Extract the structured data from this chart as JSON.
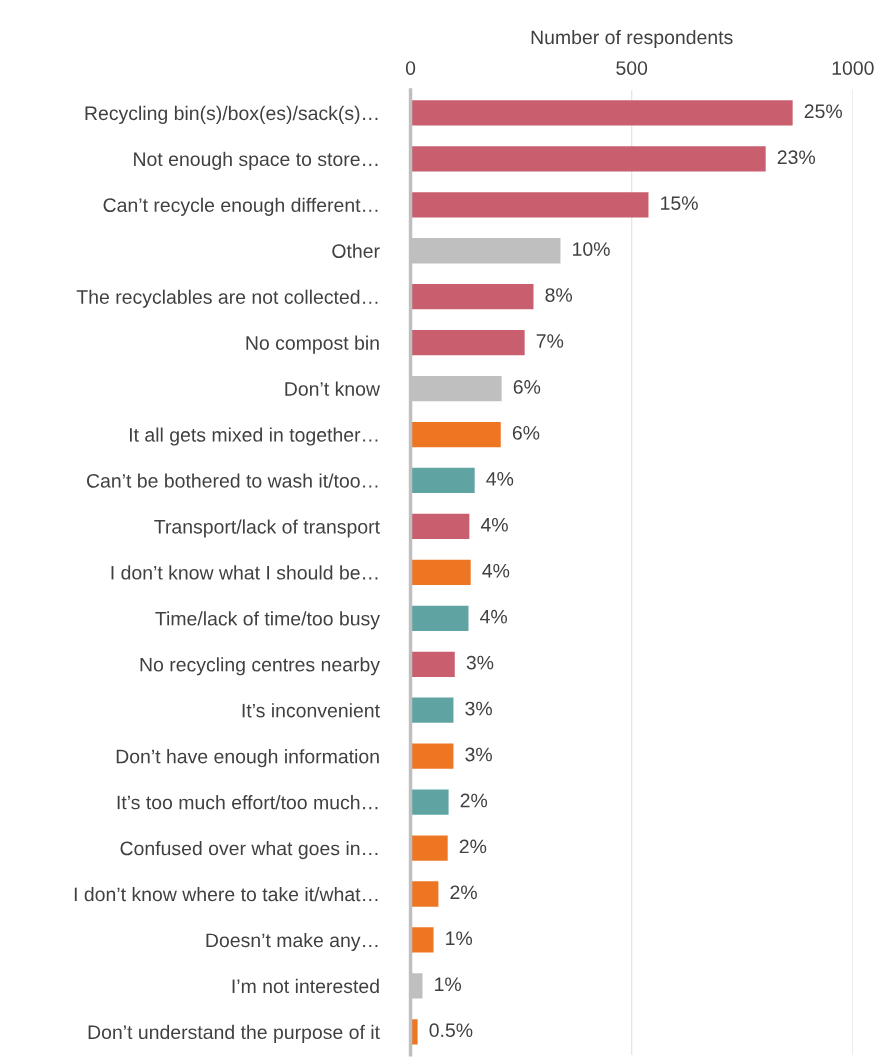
{
  "chart_data": {
    "type": "bar",
    "orientation": "horizontal",
    "xlabel": "Number of respondents",
    "categories": [
      "Recycling bin(s)/box(es)/sack(s)…",
      "Not enough space to store…",
      "Can’t recycle enough different…",
      "Other",
      "The recyclables are not collected…",
      "No compost bin",
      "Don’t know",
      "It all gets mixed in together…",
      "Can’t be bothered to wash it/too…",
      "Transport/lack of transport",
      "I don’t know what I should be…",
      "Time/lack of time/too busy",
      "No recycling centres nearby",
      "It’s inconvenient",
      "Don’t have enough information",
      "It’s too much effort/too much…",
      "Confused over what goes in…",
      "I don’t know where to take it/what…",
      "Doesn’t make any…",
      "I’m not interested",
      "Don’t understand the purpose of it"
    ],
    "values": [
      864,
      803,
      538,
      339,
      278,
      258,
      206,
      204,
      145,
      133,
      136,
      131,
      100,
      97,
      97,
      86,
      84,
      63,
      52,
      27,
      16
    ],
    "colors": [
      "#c95f6e",
      "#c95f6e",
      "#c95f6e",
      "#bfbfbf",
      "#c95f6e",
      "#c95f6e",
      "#bfbfbf",
      "#ee7623",
      "#5fa3a3",
      "#c95f6e",
      "#ee7623",
      "#5fa3a3",
      "#c95f6e",
      "#5fa3a3",
      "#ee7623",
      "#5fa3a3",
      "#ee7623",
      "#ee7623",
      "#ee7623",
      "#bfbfbf",
      "#ee7623"
    ],
    "annotations": [
      {
        "text": "25%",
        "x": 864,
        "y": "Recycling bin(s)/box(es)/sack(s)…"
      },
      {
        "text": "23%",
        "x": 803,
        "y": "Not enough space to store…"
      },
      {
        "text": "15%",
        "x": 538,
        "y": "Can’t recycle enough different…"
      },
      {
        "text": "10%",
        "x": 339,
        "y": "Other"
      },
      {
        "text": "8%",
        "x": 278,
        "y": "The recyclables are not collected…"
      },
      {
        "text": "7%",
        "x": 258,
        "y": "No compost bin"
      },
      {
        "text": "6%",
        "x": 206,
        "y": "Don’t know"
      },
      {
        "text": "6%",
        "x": 204,
        "y": "It all gets mixed in together…"
      },
      {
        "text": "4%",
        "x": 145,
        "y": "Can’t be bothered to wash it/too…"
      },
      {
        "text": "4%",
        "x": 133,
        "y": "Transport/lack of transport"
      },
      {
        "text": "4%",
        "x": 136,
        "y": "I don’t know what I should be…"
      },
      {
        "text": "4%",
        "x": 131,
        "y": "Time/lack of time/too busy"
      },
      {
        "text": "3%",
        "x": 100,
        "y": "No recycling centres nearby"
      },
      {
        "text": "3%",
        "x": 97,
        "y": "It’s inconvenient"
      },
      {
        "text": "3%",
        "x": 97,
        "y": "Don’t have enough information"
      },
      {
        "text": "2%",
        "x": 86,
        "y": "It’s too much effort/too much…"
      },
      {
        "text": "2%",
        "x": 84,
        "y": "Confused over what goes in…"
      },
      {
        "text": "2%",
        "x": 63,
        "y": "I don’t know where to take it/what…"
      },
      {
        "text": "1%",
        "x": 52,
        "y": "Doesn’t make any…"
      },
      {
        "text": "1%",
        "x": 27,
        "y": "I’m not interested"
      },
      {
        "text": "0.5%",
        "x": 16,
        "y": "Don’t understand the purpose of it"
      }
    ],
    "xlim": [
      0,
      1000
    ],
    "xticks": [
      0,
      500,
      1000
    ],
    "grid": "x"
  }
}
